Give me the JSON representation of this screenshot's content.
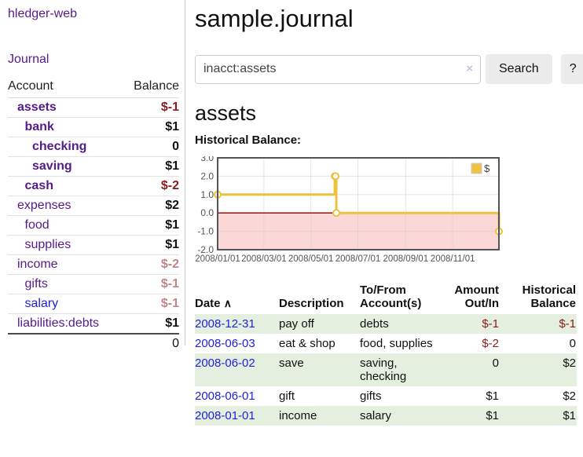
{
  "app": {
    "brand": "hledger-web"
  },
  "colors": {
    "accent_purple": "#551a8b",
    "link_blue": "#2121d9",
    "negative_strong": "#8b1a1a",
    "negative_soft": "#c08585",
    "row_green": "#e4efdf",
    "chart_line_gold": "#edc240",
    "chart_negative_fill": "#fbd7d7",
    "chart_zero_line": "#8b0000",
    "chart_border": "#545454",
    "chart_grid": "#d0d0d0"
  },
  "sidebar": {
    "journal_link": "Journal",
    "accounts_table": {
      "headers": [
        "Account",
        "Balance"
      ],
      "rows": [
        {
          "name": "assets",
          "depth": 1,
          "bold": true,
          "balance": "$-1",
          "balance_style": "neg-strong"
        },
        {
          "name": "bank",
          "depth": 2,
          "bold": true,
          "balance": "$1",
          "balance_style": "black"
        },
        {
          "name": "checking",
          "depth": 3,
          "bold": true,
          "balance": "0",
          "balance_style": "black"
        },
        {
          "name": "saving",
          "depth": 3,
          "bold": true,
          "balance": "$1",
          "balance_style": "black"
        },
        {
          "name": "cash",
          "depth": 2,
          "bold": true,
          "balance": "$-2",
          "balance_style": "neg-strong"
        },
        {
          "name": "expenses",
          "depth": 1,
          "bold": false,
          "balance": "$2",
          "balance_style": "black"
        },
        {
          "name": "food",
          "depth": 2,
          "bold": false,
          "balance": "$1",
          "balance_style": "black"
        },
        {
          "name": "supplies",
          "depth": 2,
          "bold": false,
          "balance": "$1",
          "balance_style": "black"
        },
        {
          "name": "income",
          "depth": 1,
          "bold": false,
          "balance": "$-2",
          "balance_style": "neg-soft"
        },
        {
          "name": "gifts",
          "depth": 2,
          "bold": false,
          "balance": "$-1",
          "balance_style": "neg-soft"
        },
        {
          "name": "salary",
          "depth": 2,
          "bold": false,
          "link_color": "blue",
          "balance": "$-1",
          "balance_style": "neg-soft"
        },
        {
          "name": "liabilities:debts",
          "depth": 1,
          "bold": false,
          "balance": "$1",
          "balance_style": "black"
        }
      ],
      "total": "0"
    }
  },
  "header": {
    "title": "sample.journal"
  },
  "search": {
    "value": "inacct:assets",
    "clear_icon": "×",
    "search_label": "Search",
    "help_label": "?"
  },
  "register": {
    "account_title": "assets",
    "chart_label": "Historical Balance:",
    "table": {
      "headers": [
        "Date",
        "Description",
        "To/From Account(s)",
        "Amount Out/In",
        "Historical Balance"
      ],
      "sort_ascending_icon": "∧",
      "rows": [
        {
          "date": "2008-12-31",
          "description": "pay off",
          "accounts": "debts",
          "amount": "$-1",
          "balance": "$-1"
        },
        {
          "date": "2008-06-03",
          "description": "eat & shop",
          "accounts": "food, supplies",
          "amount": "$-2",
          "balance": "0"
        },
        {
          "date": "2008-06-02",
          "description": "save",
          "accounts": "saving, checking",
          "amount": "0",
          "balance": "$2"
        },
        {
          "date": "2008-06-01",
          "description": "gift",
          "accounts": "gifts",
          "amount": "$1",
          "balance": "$2"
        },
        {
          "date": "2008-01-01",
          "description": "income",
          "accounts": "salary",
          "amount": "$1",
          "balance": "$1"
        }
      ]
    }
  },
  "chart_data": {
    "type": "line",
    "step": true,
    "title": "Historical Balance:",
    "xlabel": "",
    "ylabel": "",
    "ylim": [
      -2,
      3
    ],
    "x_range": [
      "2008-01-01",
      "2008-12-31"
    ],
    "series": [
      {
        "name": "$",
        "points": [
          [
            "2008-01-01",
            1
          ],
          [
            "2008-06-01",
            2
          ],
          [
            "2008-06-02",
            2
          ],
          [
            "2008-06-03",
            0
          ],
          [
            "2008-12-31",
            -1
          ]
        ]
      }
    ],
    "x_ticks": [
      {
        "date": "2008-01-01",
        "label": "2008/01/01"
      },
      {
        "date": "2008-03-01",
        "label": "2008/03/01"
      },
      {
        "date": "2008-05-01",
        "label": "2008/05/01"
      },
      {
        "date": "2008-07-01",
        "label": "2008/07/01"
      },
      {
        "date": "2008-09-01",
        "label": "2008/09/01"
      },
      {
        "date": "2008-11-01",
        "label": "2008/11/01"
      }
    ],
    "y_ticks": [
      {
        "value": 3,
        "label": "3.0"
      },
      {
        "value": 2,
        "label": "2.0"
      },
      {
        "value": 1,
        "label": "1.0"
      },
      {
        "value": 0,
        "label": "0.0"
      },
      {
        "value": -1,
        "label": "-1.0"
      },
      {
        "value": -2,
        "label": "-2.0"
      }
    ],
    "legend": {
      "position": "top-right",
      "label": "$"
    },
    "negative_region_shaded": true,
    "grid": true
  }
}
